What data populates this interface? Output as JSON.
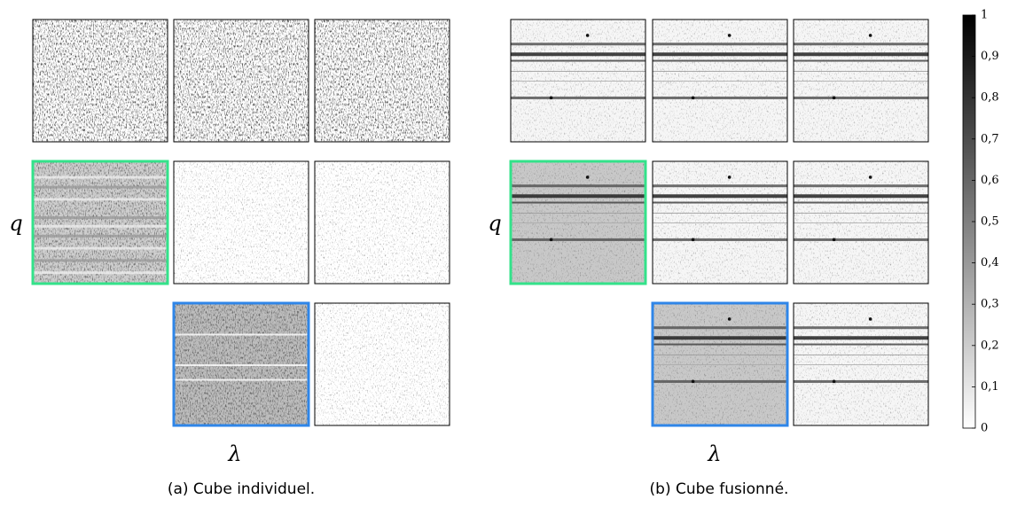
{
  "left": {
    "y_label": "q",
    "x_label": "λ",
    "caption": "(a) Cube individuel."
  },
  "right": {
    "y_label": "q",
    "x_label": "λ",
    "caption": "(b) Cube fusionné."
  },
  "colorbar": {
    "lim": [
      0,
      1
    ],
    "ticks": [
      0,
      {
        "value": 0.1,
        "label": "0,1"
      },
      {
        "value": 0.2,
        "label": "0,2"
      },
      {
        "value": 0.3,
        "label": "0,3"
      },
      {
        "value": 0.4,
        "label": "0,4"
      },
      {
        "value": 0.5,
        "label": "0,5"
      },
      {
        "value": 0.6,
        "label": "0,6"
      },
      {
        "value": 0.7,
        "label": "0,7"
      },
      {
        "value": 0.8,
        "label": "0,8"
      },
      {
        "value": 0.9,
        "label": "0,9"
      },
      1
    ]
  }
}
